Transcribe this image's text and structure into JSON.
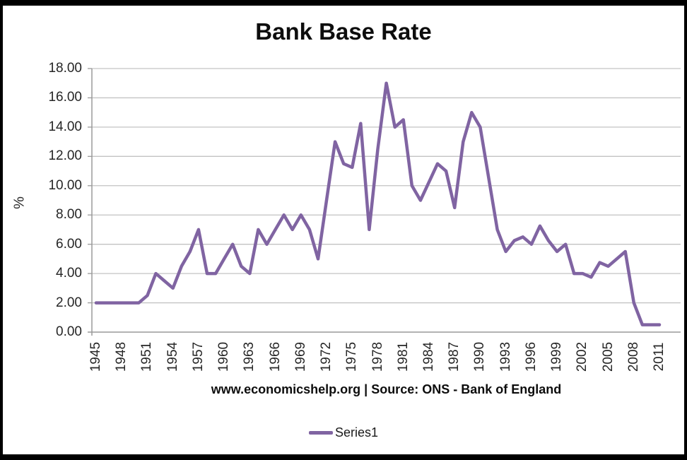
{
  "title": "Bank Base Rate",
  "y_axis_label": "%",
  "caption": "www.economicshelp.org | Source: ONS - Bank of England",
  "legend": {
    "label": "Series1"
  },
  "colors": {
    "line": "#8064A2",
    "gridline": "#C3C3C3",
    "axis": "#9A9A9A",
    "tick_text": "#262626",
    "frame": "#000000",
    "background": "#FFFFFF"
  },
  "chart_data": {
    "type": "line",
    "title": "Bank Base Rate",
    "xlabel": "",
    "ylabel": "%",
    "ylim": [
      0,
      18
    ],
    "ytick_step": 2,
    "ytick_labels": [
      "0.00",
      "2.00",
      "4.00",
      "6.00",
      "8.00",
      "10.00",
      "12.00",
      "14.00",
      "16.00",
      "18.00"
    ],
    "xtick_labels": [
      "1945",
      "1948",
      "1951",
      "1954",
      "1957",
      "1960",
      "1963",
      "1966",
      "1969",
      "1972",
      "1975",
      "1978",
      "1981",
      "1984",
      "1987",
      "1990",
      "1993",
      "1996",
      "1999",
      "2002",
      "2005",
      "2008",
      "2011"
    ],
    "grid": true,
    "legend_position": "bottom",
    "x": [
      1945,
      1946,
      1947,
      1948,
      1949,
      1950,
      1951,
      1952,
      1953,
      1954,
      1955,
      1956,
      1957,
      1958,
      1959,
      1960,
      1961,
      1962,
      1963,
      1964,
      1965,
      1966,
      1967,
      1968,
      1969,
      1970,
      1971,
      1972,
      1973,
      1974,
      1975,
      1976,
      1977,
      1978,
      1979,
      1980,
      1981,
      1982,
      1983,
      1984,
      1985,
      1986,
      1987,
      1988,
      1989,
      1990,
      1991,
      1992,
      1993,
      1994,
      1995,
      1996,
      1997,
      1998,
      1999,
      2000,
      2001,
      2002,
      2003,
      2004,
      2005,
      2006,
      2007,
      2008,
      2009,
      2010,
      2011
    ],
    "series": [
      {
        "name": "Series1",
        "color": "#8064A2",
        "values": [
          2,
          2,
          2,
          2,
          2,
          2,
          2.5,
          4,
          3.5,
          3,
          4.5,
          5.5,
          7,
          4,
          4,
          5,
          6,
          4.5,
          4,
          7,
          6,
          7,
          8,
          7,
          8,
          7,
          5,
          9,
          13,
          11.5,
          11.25,
          14.25,
          7,
          12.5,
          17,
          14,
          14.5,
          10,
          9,
          10.25,
          11.5,
          11,
          8.5,
          13,
          15,
          14,
          10.5,
          7,
          5.5,
          6.25,
          6.5,
          6,
          7.25,
          6.25,
          5.5,
          6,
          4,
          4,
          3.75,
          4.75,
          4.5,
          5,
          5.5,
          2,
          0.5,
          0.5,
          0.5
        ]
      }
    ]
  }
}
